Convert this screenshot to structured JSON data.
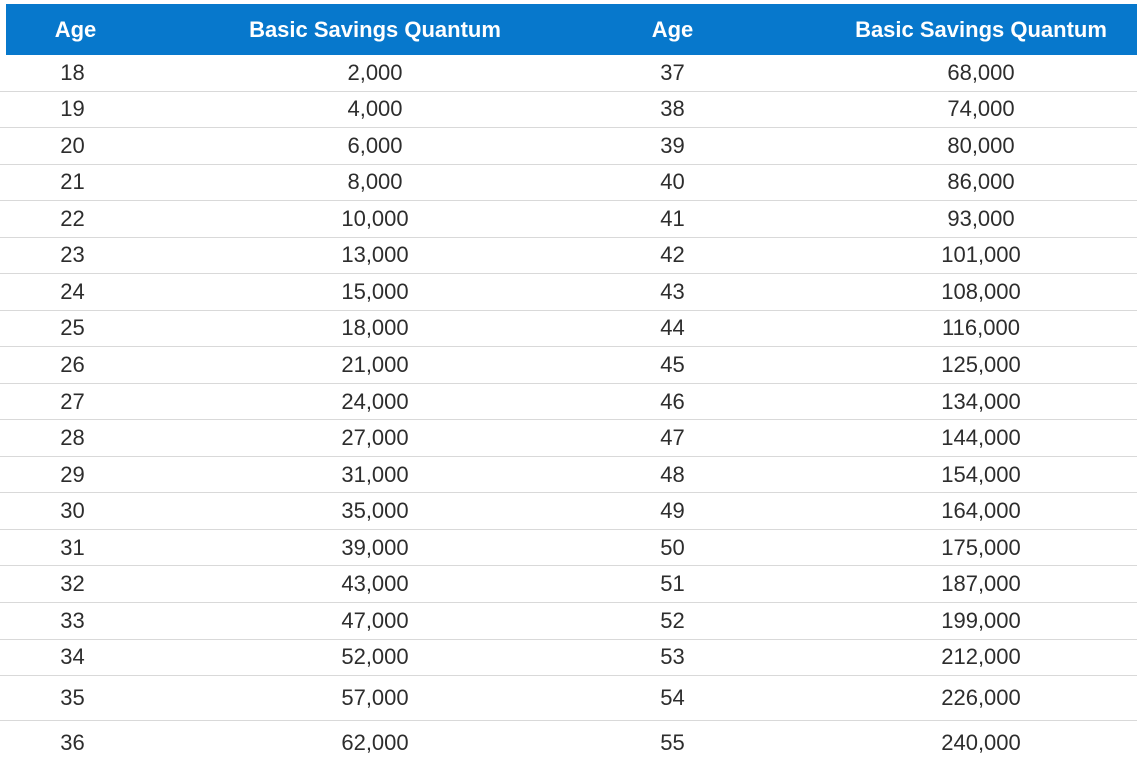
{
  "table": {
    "headers": [
      "Age",
      "Basic Savings Quantum",
      "Age",
      "Basic Savings Quantum"
    ],
    "rows": [
      [
        "18",
        "2,000",
        "37",
        "68,000"
      ],
      [
        "19",
        "4,000",
        "38",
        "74,000"
      ],
      [
        "20",
        "6,000",
        "39",
        "80,000"
      ],
      [
        "21",
        "8,000",
        "40",
        "86,000"
      ],
      [
        "22",
        "10,000",
        "41",
        "93,000"
      ],
      [
        "23",
        "13,000",
        "42",
        "101,000"
      ],
      [
        "24",
        "15,000",
        "43",
        "108,000"
      ],
      [
        "25",
        "18,000",
        "44",
        "116,000"
      ],
      [
        "26",
        "21,000",
        "45",
        "125,000"
      ],
      [
        "27",
        "24,000",
        "46",
        "134,000"
      ],
      [
        "28",
        "27,000",
        "47",
        "144,000"
      ],
      [
        "29",
        "31,000",
        "48",
        "154,000"
      ],
      [
        "30",
        "35,000",
        "49",
        "164,000"
      ],
      [
        "31",
        "39,000",
        "50",
        "175,000"
      ],
      [
        "32",
        "43,000",
        "51",
        "187,000"
      ],
      [
        "33",
        "47,000",
        "52",
        "199,000"
      ],
      [
        "34",
        "52,000",
        "53",
        "212,000"
      ],
      [
        "35",
        "57,000",
        "54",
        "226,000"
      ],
      [
        "36",
        "62,000",
        "55",
        "240,000"
      ]
    ]
  },
  "colors": {
    "header_bg": "#0778cc",
    "header_text": "#ffffff",
    "body_text": "#2d2d2d",
    "divider": "#d9d9d9"
  }
}
